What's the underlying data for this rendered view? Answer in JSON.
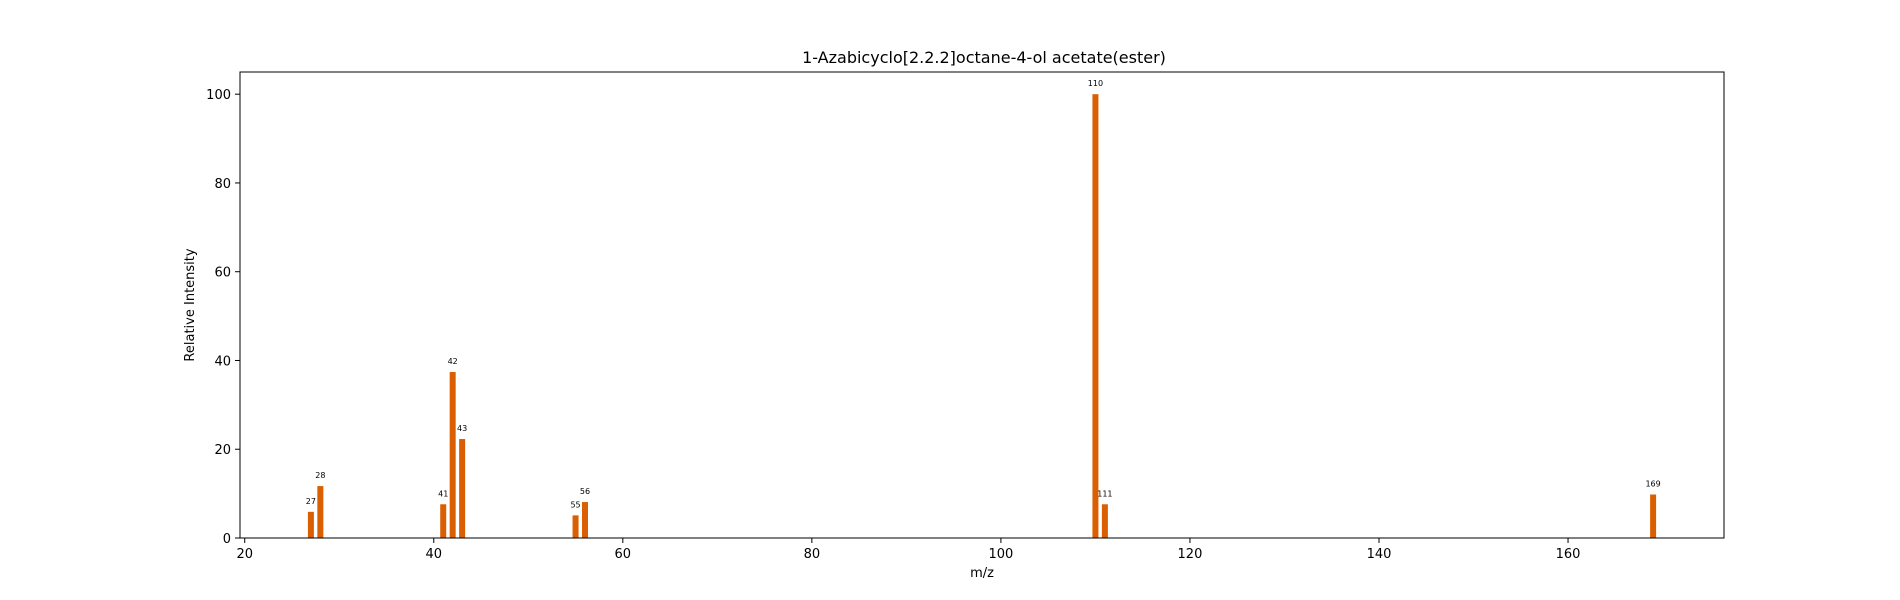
{
  "chart_data": {
    "type": "bar",
    "title": "1-Azabicyclo[2.2.2]octane-4-ol acetate(ester)",
    "xlabel": "m/z",
    "ylabel": "Relative Intensity",
    "xlim": [
      19.5,
      176.5
    ],
    "ylim": [
      0,
      105
    ],
    "x_ticks": [
      20,
      40,
      60,
      80,
      100,
      120,
      140,
      160
    ],
    "y_ticks": [
      0,
      20,
      40,
      60,
      80,
      100
    ],
    "bar_color": "#d95f02",
    "grid": false,
    "peaks": [
      {
        "mz": 27,
        "intensity": 5.9,
        "label": "27"
      },
      {
        "mz": 28,
        "intensity": 11.7,
        "label": "28"
      },
      {
        "mz": 41,
        "intensity": 7.6,
        "label": "41"
      },
      {
        "mz": 42,
        "intensity": 37.4,
        "label": "42"
      },
      {
        "mz": 43,
        "intensity": 22.3,
        "label": "43"
      },
      {
        "mz": 55,
        "intensity": 5.1,
        "label": "55"
      },
      {
        "mz": 56,
        "intensity": 8.1,
        "label": "56"
      },
      {
        "mz": 110,
        "intensity": 100,
        "label": "110"
      },
      {
        "mz": 111,
        "intensity": 7.6,
        "label": "111"
      },
      {
        "mz": 169,
        "intensity": 9.8,
        "label": "169"
      }
    ]
  }
}
